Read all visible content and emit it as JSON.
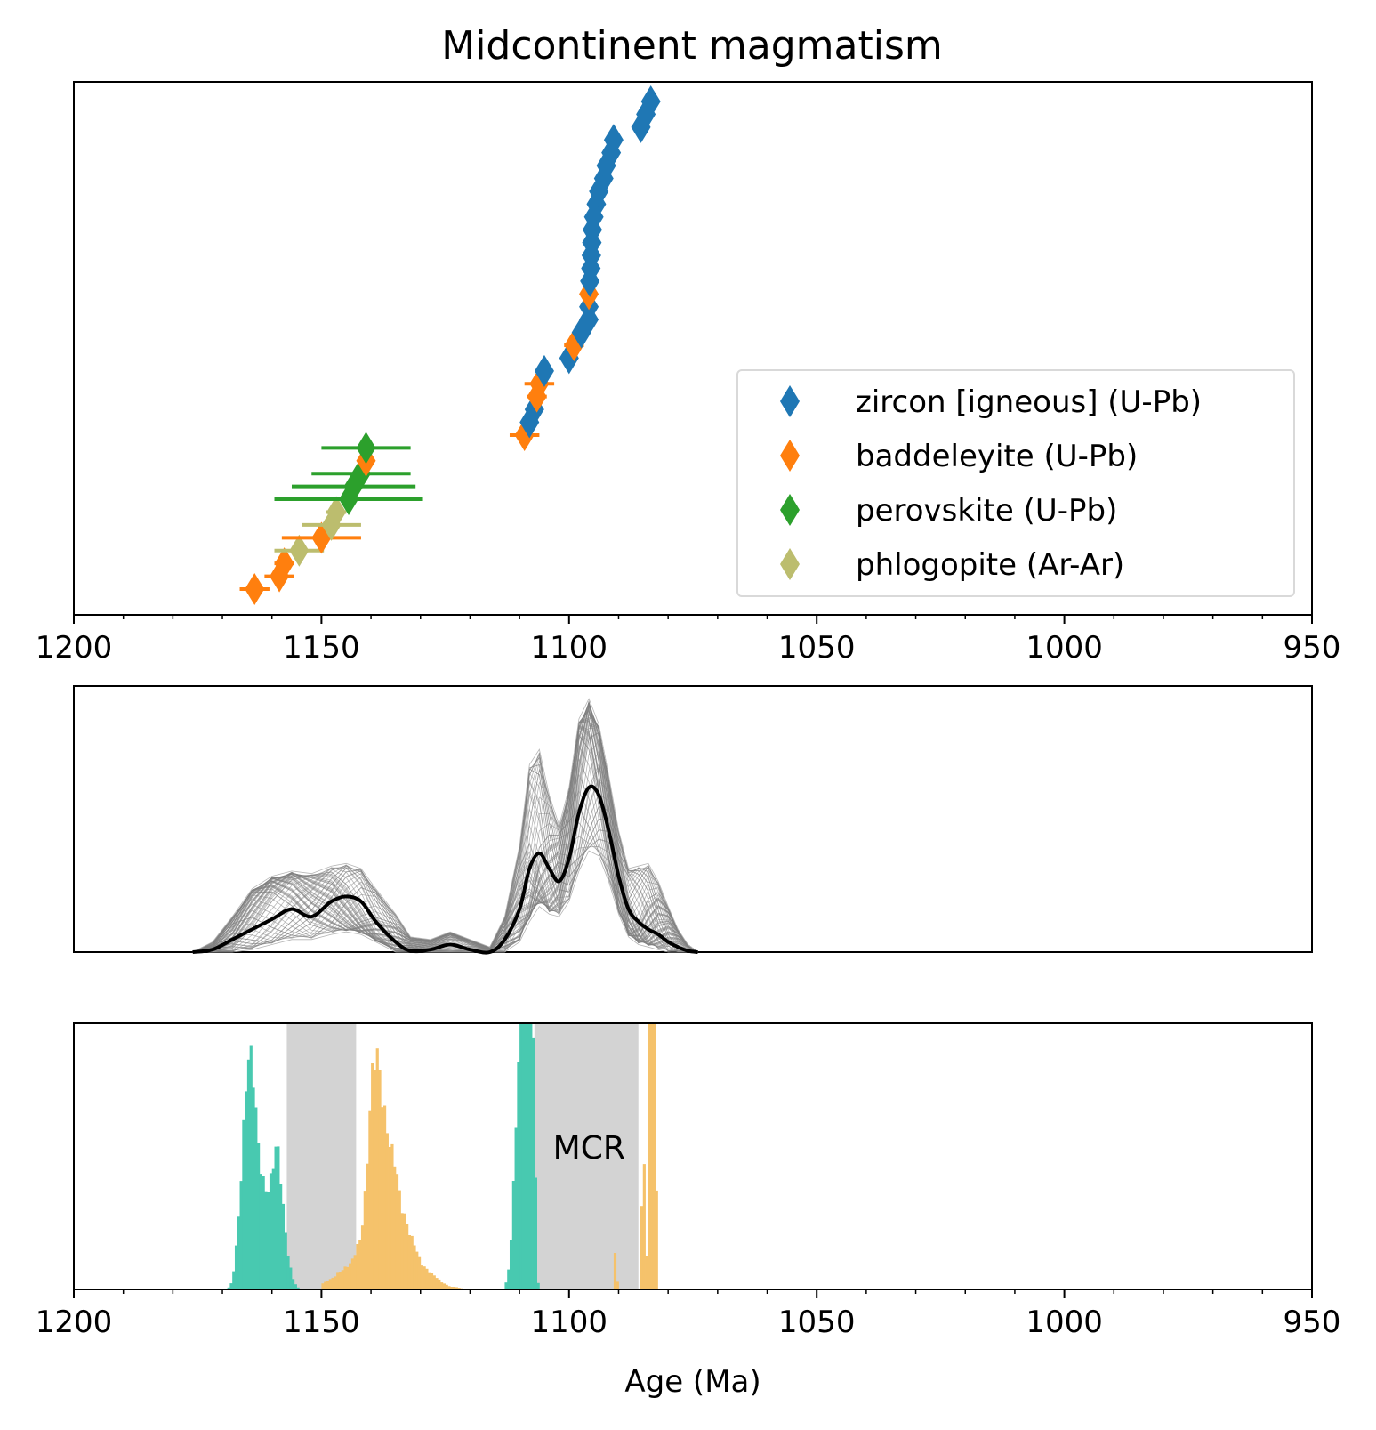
{
  "title": "Midcontinent magmatism",
  "colors": {
    "zircon": "#1f77b4",
    "baddeleyite": "#ff7f0e",
    "perovskite": "#2ca02c",
    "phlogopite": "#bcbd6e",
    "ensemble": "#7f7f7f",
    "mean": "#000000",
    "teal": "#48c9b0",
    "amber": "#f5c26b",
    "band": "#d3d3d3"
  },
  "chart_data": [
    {
      "type": "scatter",
      "panel": "ages",
      "xlim": [
        1200,
        950
      ],
      "x_ticks": [
        1200,
        1150,
        1100,
        1050,
        1000,
        950
      ],
      "x_minor_step": 10,
      "legend_position": "bottom-right",
      "series": [
        {
          "name": "zircon [igneous] (U-Pb)",
          "color_key": "zircon",
          "points": [
            {
              "x": 1107.0,
              "xerr": 1.0
            },
            {
              "x": 1108.0,
              "xerr": 1.0
            },
            {
              "x": 1105.0,
              "xerr": 1.0
            },
            {
              "x": 1100.0,
              "xerr": 1.0
            },
            {
              "x": 1097.5,
              "xerr": 1.0
            },
            {
              "x": 1096.0,
              "xerr": 1.0
            },
            {
              "x": 1096.0,
              "xerr": 1.0
            },
            {
              "x": 1095.8,
              "xerr": 1.0
            },
            {
              "x": 1095.6,
              "xerr": 1.0
            },
            {
              "x": 1095.5,
              "xerr": 1.0
            },
            {
              "x": 1095.4,
              "xerr": 1.0
            },
            {
              "x": 1095.3,
              "xerr": 1.0
            },
            {
              "x": 1095.0,
              "xerr": 1.0
            },
            {
              "x": 1094.5,
              "xerr": 1.0
            },
            {
              "x": 1094.0,
              "xerr": 1.0
            },
            {
              "x": 1093.0,
              "xerr": 1.0
            },
            {
              "x": 1092.5,
              "xerr": 1.0
            },
            {
              "x": 1091.5,
              "xerr": 1.0
            },
            {
              "x": 1091.0,
              "xerr": 1.0
            },
            {
              "x": 1085.5,
              "xerr": 1.0
            },
            {
              "x": 1084.5,
              "xerr": 1.0
            },
            {
              "x": 1083.5,
              "xerr": 1.0
            }
          ]
        },
        {
          "name": "baddeleyite (U-Pb)",
          "color_key": "baddeleyite",
          "points": [
            {
              "x": 1163.5,
              "xerr": 3.0
            },
            {
              "x": 1158.5,
              "xerr": 3.0
            },
            {
              "x": 1157.5,
              "xerr": 2.0
            },
            {
              "x": 1150.0,
              "xerr": 8.0
            },
            {
              "x": 1141.0,
              "xerr": 1.0
            },
            {
              "x": 1109.0,
              "xerr": 3.0
            },
            {
              "x": 1106.5,
              "xerr": 2.0
            },
            {
              "x": 1106.0,
              "xerr": 3.0
            },
            {
              "x": 1099.0,
              "xerr": 2.0
            },
            {
              "x": 1096.0,
              "xerr": 1.0
            }
          ]
        },
        {
          "name": "perovskite (U-Pb)",
          "color_key": "perovskite",
          "points": [
            {
              "x": 1144.5,
              "xerr": 15.0
            },
            {
              "x": 1143.5,
              "xerr": 12.5
            },
            {
              "x": 1142.0,
              "xerr": 10.0
            },
            {
              "x": 1141.0,
              "xerr": 9.0
            }
          ]
        },
        {
          "name": "phlogopite (Ar-Ar)",
          "color_key": "phlogopite",
          "points": [
            {
              "x": 1154.5,
              "xerr": 5.0
            },
            {
              "x": 1148.0,
              "xerr": 6.0
            },
            {
              "x": 1147.0,
              "xerr": 2.0
            }
          ]
        }
      ]
    },
    {
      "type": "line",
      "panel": "kernel-density",
      "xlim": [
        1200,
        950
      ],
      "ylim": [
        0,
        1.05
      ],
      "mean_color_key": "mean",
      "ensemble_color_key": "ensemble",
      "x": [
        1176,
        1172,
        1168,
        1164,
        1160,
        1156,
        1152,
        1148,
        1145,
        1142,
        1139,
        1135,
        1132,
        1128,
        1124,
        1120,
        1116,
        1113,
        1110,
        1108,
        1106,
        1104,
        1102,
        1100,
        1098,
        1096,
        1094,
        1092,
        1090,
        1088,
        1086,
        1084,
        1082,
        1080,
        1078,
        1076,
        1074
      ],
      "mean": [
        0.0,
        0.01,
        0.05,
        0.09,
        0.13,
        0.17,
        0.14,
        0.2,
        0.22,
        0.2,
        0.12,
        0.04,
        0.005,
        0.01,
        0.03,
        0.01,
        0.0,
        0.05,
        0.17,
        0.33,
        0.39,
        0.33,
        0.28,
        0.37,
        0.55,
        0.65,
        0.62,
        0.48,
        0.3,
        0.17,
        0.12,
        0.09,
        0.07,
        0.04,
        0.02,
        0.005,
        0.0
      ],
      "ensemble_upper": [
        0.0,
        0.04,
        0.14,
        0.25,
        0.3,
        0.32,
        0.31,
        0.34,
        0.35,
        0.33,
        0.25,
        0.15,
        0.06,
        0.05,
        0.08,
        0.05,
        0.02,
        0.14,
        0.42,
        0.74,
        0.8,
        0.62,
        0.5,
        0.65,
        0.92,
        1.0,
        0.9,
        0.7,
        0.48,
        0.33,
        0.34,
        0.35,
        0.28,
        0.18,
        0.09,
        0.03,
        0.0
      ],
      "ensemble_lower": [
        0.0,
        0.0,
        0.0,
        0.01,
        0.03,
        0.05,
        0.05,
        0.07,
        0.08,
        0.07,
        0.04,
        0.0,
        0.0,
        0.0,
        0.0,
        0.0,
        0.0,
        0.0,
        0.04,
        0.12,
        0.18,
        0.15,
        0.14,
        0.2,
        0.32,
        0.4,
        0.38,
        0.28,
        0.15,
        0.06,
        0.03,
        0.02,
        0.01,
        0.0,
        0.0,
        0.0,
        0.0
      ]
    },
    {
      "type": "area",
      "panel": "histograms",
      "xlim": [
        1200,
        950
      ],
      "x_ticks": [
        1200,
        1150,
        1100,
        1050,
        1000,
        950
      ],
      "x_minor_step": 10,
      "xlabel": "Age (Ma)",
      "ylim": [
        0,
        1
      ],
      "bands": [
        {
          "from": 1157,
          "to": 1143,
          "color_key": "band"
        },
        {
          "from": 1107,
          "to": 1086,
          "color_key": "band",
          "label": "MCR"
        }
      ],
      "histograms": [
        {
          "color_key": "teal",
          "x": [
            1169,
            1168,
            1167,
            1166,
            1165.5,
            1165,
            1164.5,
            1164,
            1163.5,
            1163,
            1162,
            1161,
            1160,
            1159.5,
            1159,
            1158.5,
            1158,
            1157,
            1156,
            1155,
            1154
          ],
          "y": [
            0.0,
            0.03,
            0.2,
            0.5,
            0.7,
            0.85,
            0.89,
            0.86,
            0.75,
            0.58,
            0.42,
            0.36,
            0.43,
            0.52,
            0.55,
            0.48,
            0.36,
            0.16,
            0.05,
            0.01,
            0.0
          ]
        },
        {
          "color_key": "teal",
          "x": [
            1113,
            1112,
            1111,
            1110.5,
            1110,
            1109.5,
            1109,
            1108.5,
            1108,
            1107.5,
            1107,
            1106.5,
            1106
          ],
          "y": [
            0.0,
            0.1,
            0.48,
            0.78,
            0.95,
            1.0,
            1.0,
            1.0,
            1.0,
            1.0,
            0.8,
            0.05,
            0.0
          ]
        },
        {
          "color_key": "amber",
          "x": [
            1150,
            1148,
            1146,
            1144,
            1142,
            1141,
            1140,
            1139.5,
            1139,
            1138.5,
            1138,
            1137,
            1136,
            1135,
            1134,
            1133,
            1132,
            1131,
            1130,
            1129,
            1128,
            1127,
            1126,
            1125,
            1124,
            1123,
            1122,
            1121,
            1120
          ],
          "y": [
            0.02,
            0.04,
            0.07,
            0.1,
            0.2,
            0.4,
            0.77,
            0.85,
            0.9,
            0.86,
            0.76,
            0.62,
            0.53,
            0.47,
            0.32,
            0.26,
            0.2,
            0.16,
            0.1,
            0.08,
            0.06,
            0.05,
            0.03,
            0.02,
            0.01,
            0.01,
            0.005,
            0.002,
            0.0
          ]
        },
        {
          "color_key": "amber",
          "x": [
            1091.0,
            1090.6,
            1090.2
          ],
          "y": [
            0.0,
            0.23,
            0.0
          ]
        },
        {
          "color_key": "amber",
          "x": [
            1085.6,
            1085.3,
            1085.0,
            1084.7,
            1084.4,
            1084.0,
            1083.3,
            1082.6,
            1082.2
          ],
          "y": [
            0.0,
            0.4,
            0.62,
            0.28,
            0.0,
            1.0,
            1.0,
            1.0,
            0.0
          ]
        }
      ]
    }
  ]
}
